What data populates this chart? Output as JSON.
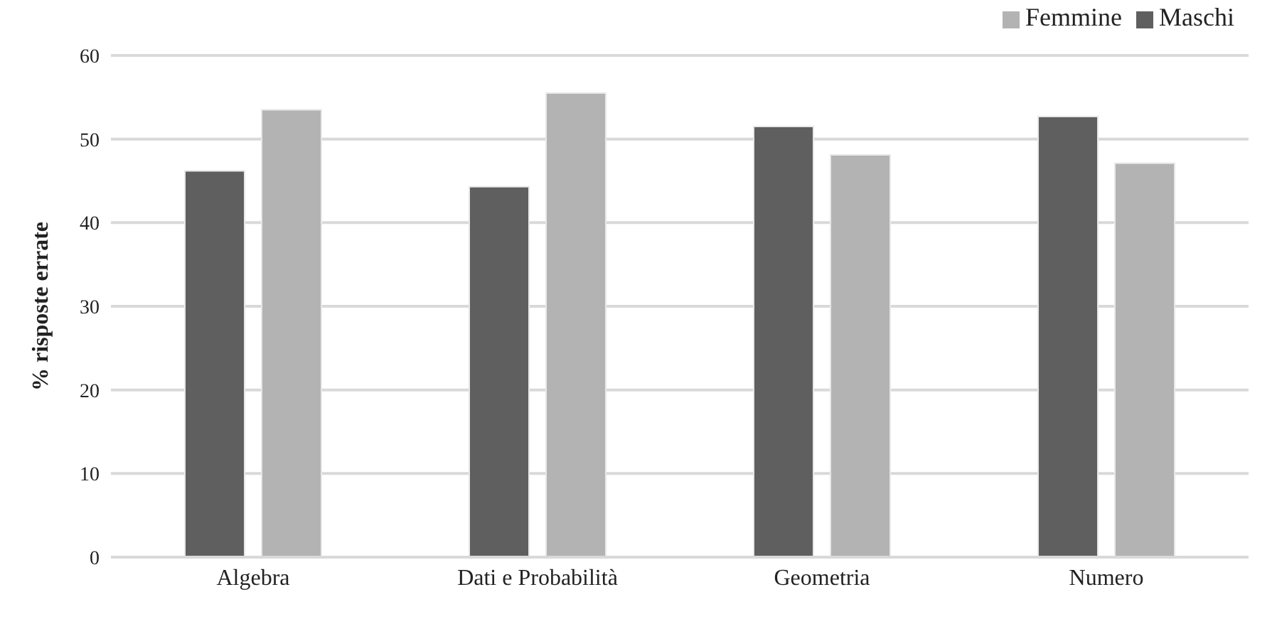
{
  "chart_data": {
    "type": "bar",
    "ylabel": "% risposte errate",
    "categories": [
      "Algebra",
      "Dati e Probabilità",
      "Geometria",
      "Numero"
    ],
    "series": [
      {
        "name": "Maschi",
        "color": "#5f5f5f",
        "values": [
          46.2,
          44.3,
          51.5,
          52.7
        ]
      },
      {
        "name": "Femmine",
        "color": "#b3b3b3",
        "values": [
          53.5,
          55.5,
          48.1,
          47.1
        ]
      }
    ],
    "ylim": [
      0,
      60
    ],
    "yticks": [
      0,
      10,
      20,
      30,
      40,
      50,
      60
    ],
    "grid": "y",
    "legend": "top right"
  }
}
